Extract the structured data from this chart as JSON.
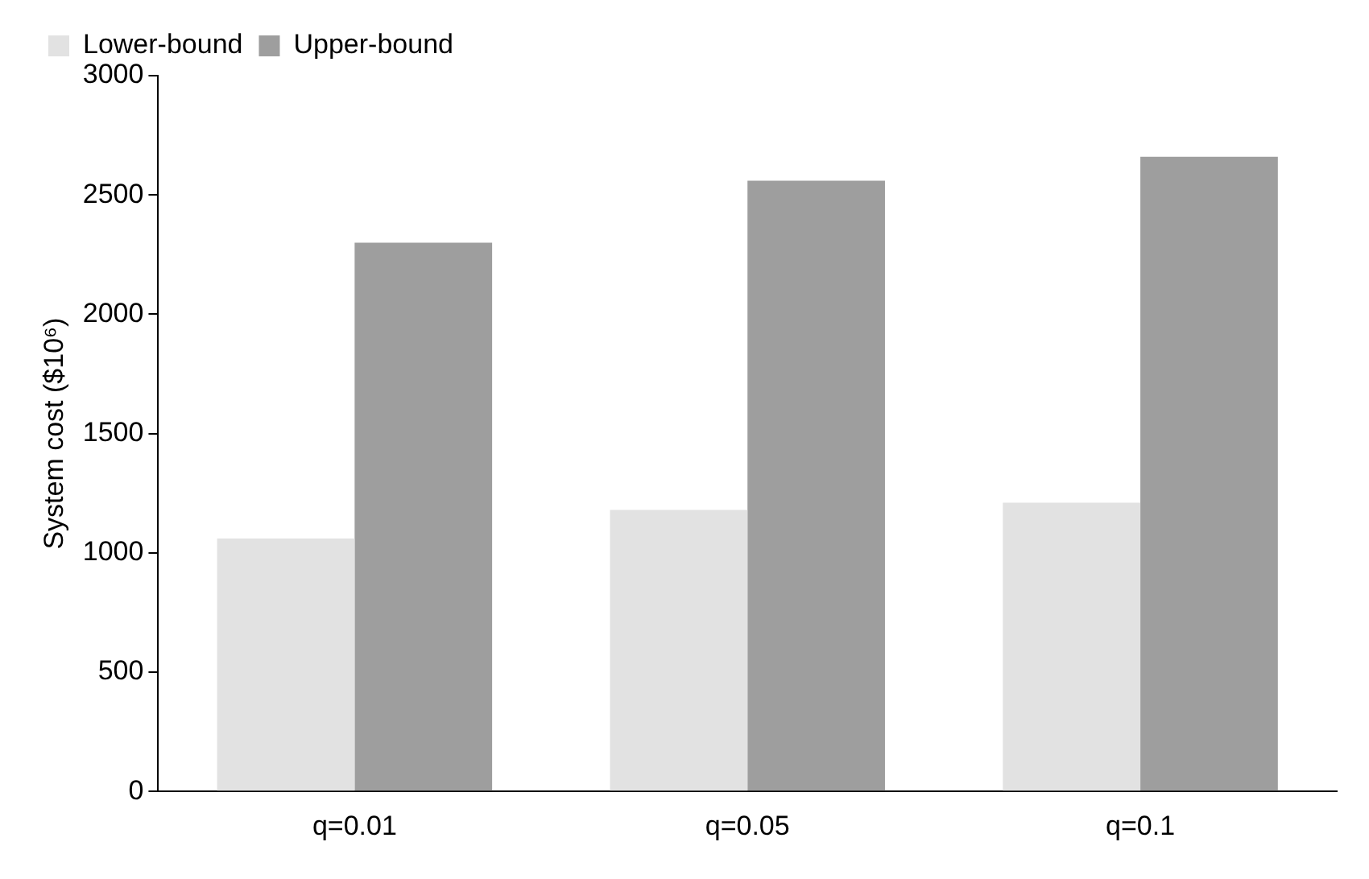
{
  "chart_data": {
    "type": "bar",
    "ylabel": "System cost ($10⁶)",
    "categories": [
      "q=0.01",
      "q=0.05",
      "q=0.1"
    ],
    "series": [
      {
        "name": "Lower-bound",
        "color": "#e2e2e2",
        "values": [
          1060,
          1180,
          1210
        ]
      },
      {
        "name": "Upper-bound",
        "color": "#9e9e9e",
        "values": [
          2300,
          2560,
          2660
        ]
      }
    ],
    "ylim": [
      0,
      3000
    ],
    "yticks": [
      0,
      500,
      1000,
      1500,
      2000,
      2500,
      3000
    ],
    "grid": false,
    "legend": "top left"
  }
}
